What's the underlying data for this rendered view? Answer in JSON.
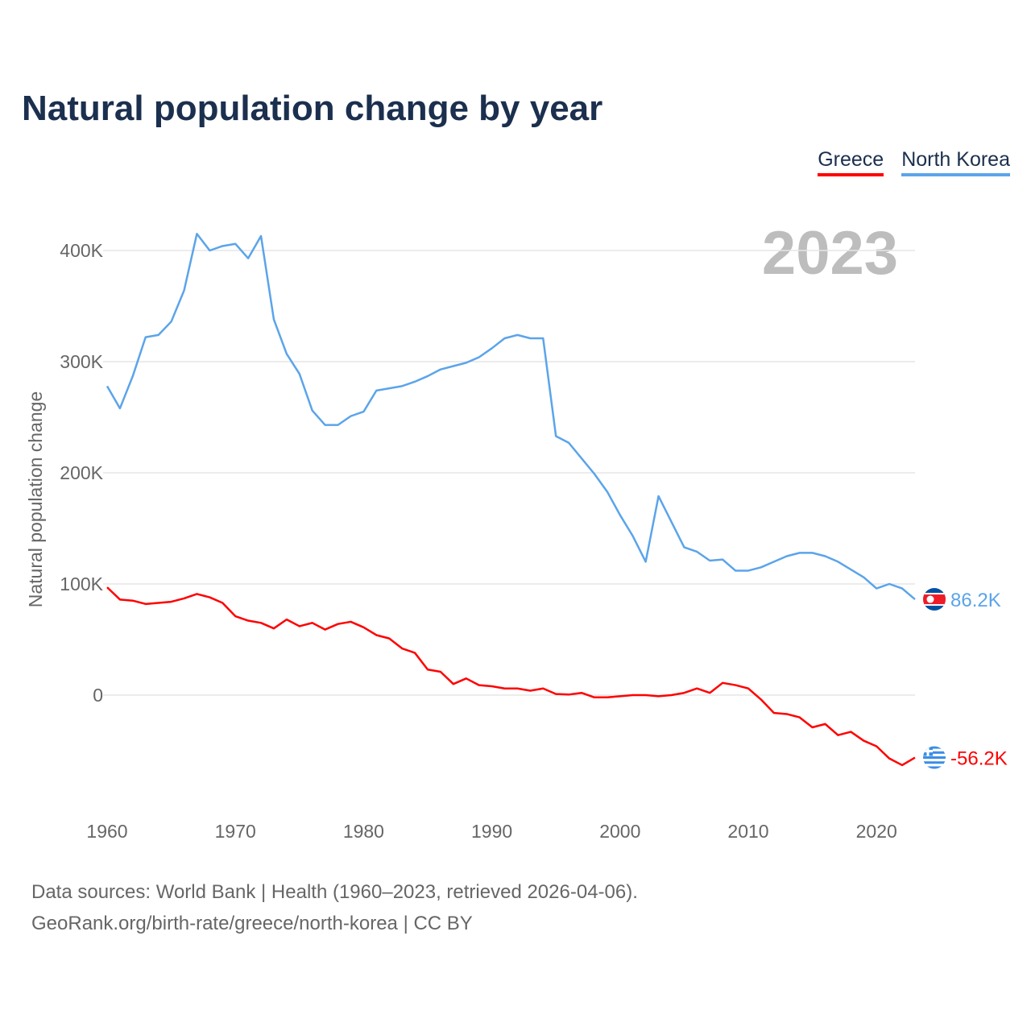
{
  "chart_data": {
    "type": "line",
    "title": "Natural population change by year",
    "xlabel": "",
    "ylabel": "Natural population change",
    "year_label": "2023",
    "xlim": [
      1960,
      2023
    ],
    "ylim": [
      -105000,
      440000
    ],
    "xticks": [
      1960,
      1970,
      1980,
      1990,
      2000,
      2010,
      2020
    ],
    "yticks": [
      {
        "v": 0,
        "label": "0"
      },
      {
        "v": 100000,
        "label": "100K"
      },
      {
        "v": 200000,
        "label": "200K"
      },
      {
        "v": 300000,
        "label": "300K"
      },
      {
        "v": 400000,
        "label": "400K"
      }
    ],
    "x_start": 1960,
    "legend_position": "top-right",
    "series": [
      {
        "name": "Greece",
        "color": "#ff0000",
        "end_label": "-56.2K",
        "flag": "greece-flag",
        "values": [
          97000,
          86000,
          85000,
          82000,
          83000,
          84000,
          87000,
          91000,
          88000,
          83000,
          71000,
          67000,
          65000,
          60000,
          68000,
          62000,
          65000,
          59000,
          64000,
          66000,
          61000,
          54000,
          51000,
          42000,
          38000,
          23000,
          21000,
          10000,
          15000,
          9000,
          8000,
          6000,
          6000,
          4000,
          6000,
          1000,
          500,
          2000,
          -2000,
          -2000,
          -1000,
          0,
          0,
          -1000,
          0,
          2000,
          6000,
          2000,
          11000,
          9000,
          6000,
          -4000,
          -16000,
          -17000,
          -20000,
          -29000,
          -26000,
          -36000,
          -33000,
          -41000,
          -46000,
          -57000,
          -63000,
          -56200
        ]
      },
      {
        "name": "North Korea",
        "color": "#5ba4ea",
        "end_label": "86.2K",
        "flag": "north-korea-flag",
        "values": [
          278000,
          258000,
          287000,
          322000,
          324000,
          336000,
          364000,
          415000,
          400000,
          404000,
          406000,
          393000,
          413000,
          338000,
          307000,
          289000,
          256000,
          243000,
          243000,
          251000,
          255000,
          274000,
          276000,
          278000,
          282000,
          287000,
          293000,
          296000,
          299000,
          304000,
          312000,
          321000,
          324000,
          321000,
          321000,
          233000,
          227000,
          213000,
          199000,
          183000,
          162000,
          143000,
          120000,
          179000,
          156000,
          133000,
          129000,
          121000,
          122000,
          112000,
          112000,
          115000,
          120000,
          125000,
          128000,
          128000,
          125000,
          120000,
          113000,
          106000,
          96000,
          100000,
          96000,
          86200
        ]
      }
    ]
  },
  "source": {
    "line1": "Data sources: World Bank | Health (1960–2023, retrieved 2026-04-06).",
    "line2": "GeoRank.org/birth-rate/greece/north-korea | CC BY"
  }
}
